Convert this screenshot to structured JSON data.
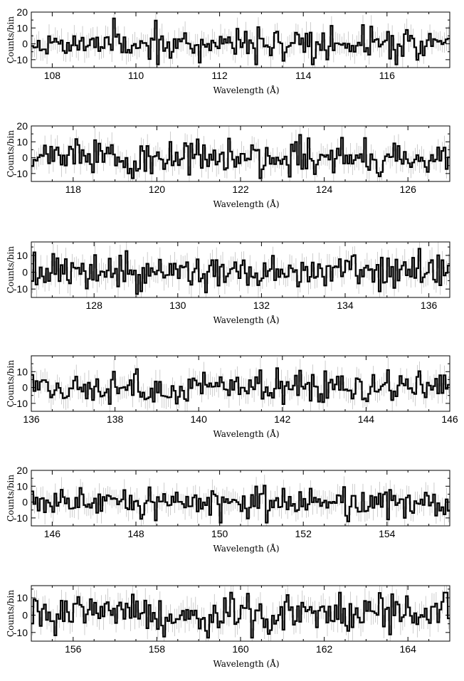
{
  "chart_data": [
    {
      "type": "line",
      "style": "histogram-step-with-error-bars",
      "xlabel": "Wavelength (Å)",
      "ylabel": "Counts/bin",
      "xlim": [
        107.5,
        117.5
      ],
      "ylim": [
        -15,
        20
      ],
      "xticks": [
        108,
        110,
        112,
        114,
        116
      ],
      "yticks": [
        -10,
        0,
        10,
        20
      ],
      "bin_width": 0.05,
      "seed": 11
    },
    {
      "type": "line",
      "style": "histogram-step-with-error-bars",
      "xlabel": "Wavelength (Å)",
      "ylabel": "Counts/bin",
      "xlim": [
        117,
        127
      ],
      "ylim": [
        -15,
        20
      ],
      "xticks": [
        118,
        120,
        122,
        124,
        126
      ],
      "yticks": [
        -10,
        0,
        10,
        20
      ],
      "bin_width": 0.05,
      "seed": 23
    },
    {
      "type": "line",
      "style": "histogram-step-with-error-bars",
      "xlabel": "Wavelength (Å)",
      "ylabel": "Counts/bin",
      "xlim": [
        126.5,
        136.5
      ],
      "ylim": [
        -15,
        18
      ],
      "xticks": [
        128,
        130,
        132,
        134,
        136
      ],
      "yticks": [
        -10,
        0,
        10
      ],
      "bin_width": 0.05,
      "seed": 37
    },
    {
      "type": "line",
      "style": "histogram-step-with-error-bars",
      "xlabel": "Wavelength (Å)",
      "ylabel": "Counts/bin",
      "xlim": [
        136,
        146
      ],
      "ylim": [
        -15,
        20
      ],
      "xticks": [
        136,
        138,
        140,
        142,
        144,
        146
      ],
      "yticks": [
        -10,
        0,
        10
      ],
      "bin_width": 0.05,
      "seed": 41
    },
    {
      "type": "line",
      "style": "histogram-step-with-error-bars",
      "xlabel": "Wavelength (Å)",
      "ylabel": "Counts/bin",
      "xlim": [
        145.5,
        155.5
      ],
      "ylim": [
        -15,
        20
      ],
      "xticks": [
        146,
        148,
        150,
        152,
        154
      ],
      "yticks": [
        -10,
        0,
        10,
        20
      ],
      "bin_width": 0.05,
      "seed": 53
    },
    {
      "type": "line",
      "style": "histogram-step-with-error-bars",
      "xlabel": "Wavelength (Å)",
      "ylabel": "Counts/bin",
      "xlim": [
        155,
        165
      ],
      "ylim": [
        -15,
        17
      ],
      "xticks": [
        156,
        158,
        160,
        162,
        164
      ],
      "yticks": [
        -10,
        0,
        10
      ],
      "bin_width": 0.05,
      "seed": 67
    }
  ]
}
